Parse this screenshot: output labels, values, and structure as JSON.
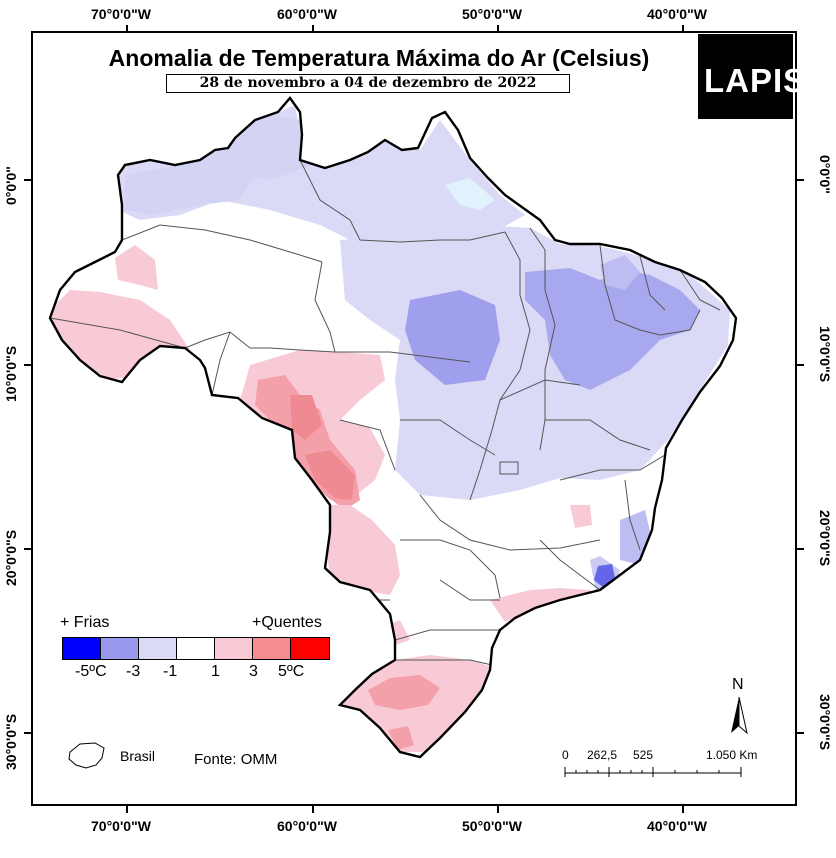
{
  "title": "Anomalia de Temperatura Máxima do Ar (Celsius)",
  "subtitle": "28 de novembro a 04 de dezembro de 2022",
  "logo": {
    "text": "LAPIS"
  },
  "axes": {
    "longitude_labels": [
      "70°0'0\"W",
      "60°0'0\"W",
      "50°0'0\"W",
      "40°0'0\"W"
    ],
    "latitude_labels": [
      "0°0'0\"",
      "10°0'0\"S",
      "20°0'0\"S",
      "30°0'0\"S"
    ]
  },
  "legend": {
    "left_heading": "+ Frias",
    "right_heading": "+Quentes",
    "swatches": [
      "#0000ff",
      "#9999ee",
      "#dadaf6",
      "#ffffff",
      "#f8cad6",
      "#f48e92",
      "#ff0000"
    ],
    "labels": [
      "-5ºC",
      "-3",
      "-1",
      "1",
      "3",
      "5ºC"
    ]
  },
  "inset_label": "Brasil",
  "source": "Fonte: OMM",
  "scale_bar": {
    "labels": [
      "0",
      "262,5",
      "525",
      "1.050 Km"
    ]
  },
  "north_arrow": "N",
  "colors": {
    "very_cold": "#0000ff",
    "cold": "#9999ee",
    "slightly_cold": "#dadaf6",
    "neutral": "#ffffff",
    "slightly_warm": "#f8cad6",
    "warm": "#f48e92",
    "very_warm": "#ff0000",
    "state_border": "#555555",
    "country_border": "#000000"
  }
}
